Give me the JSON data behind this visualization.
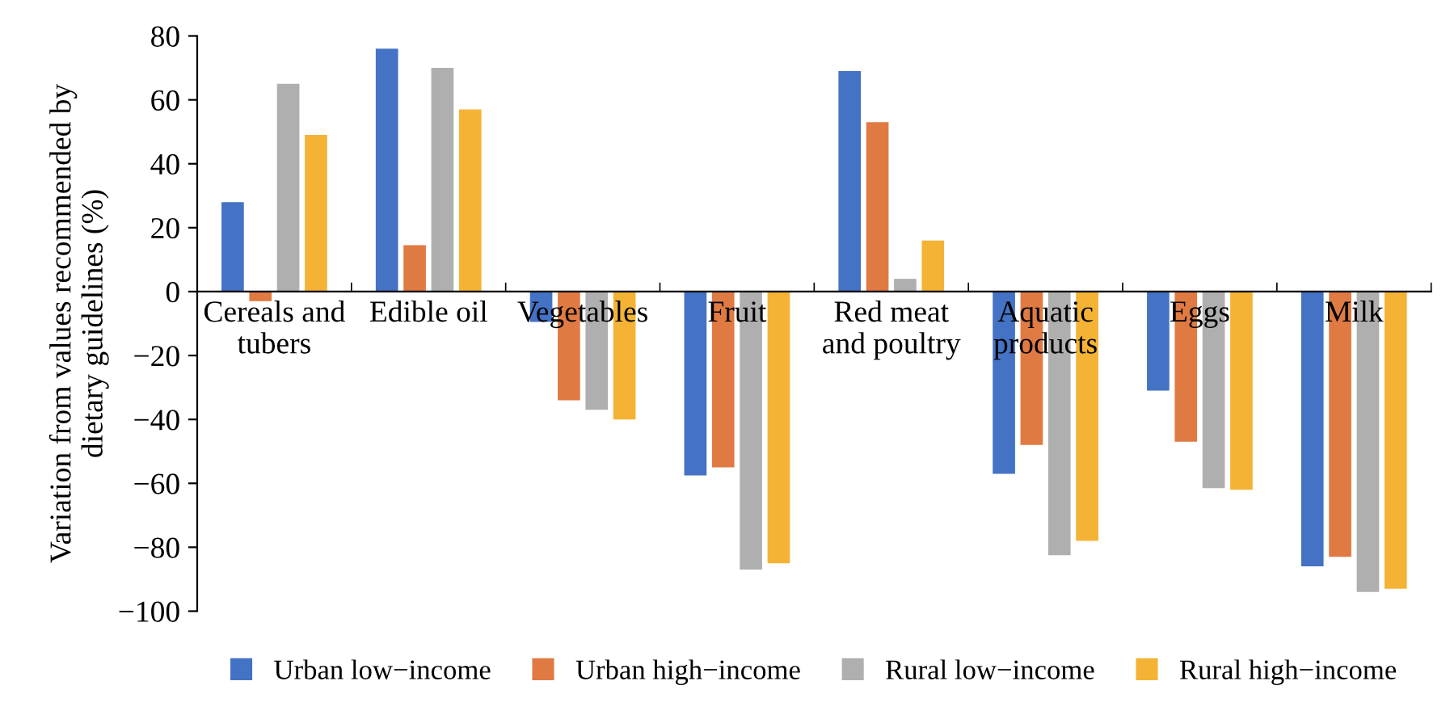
{
  "chart_data": {
    "type": "bar",
    "ylabel": "Variation from values recommended by\ndietary guidelines (%)",
    "categories": [
      "Cereals and\ntubers",
      "Edible oil",
      "Vegetables",
      "Fruit",
      "Red meat\nand poultry",
      "Aquatic\nproducts",
      "Eggs",
      "Milk"
    ],
    "series": [
      {
        "name": "Urban low−income",
        "color": "#4472c4",
        "values": [
          28,
          76,
          -9.5,
          -57.5,
          69,
          -57,
          -31,
          -86
        ]
      },
      {
        "name": "Urban high−income",
        "color": "#e07a43",
        "values": [
          -3,
          14.5,
          -34,
          -55,
          53,
          -48,
          -47,
          -83
        ]
      },
      {
        "name": "Rural low−income",
        "color": "#afafaf",
        "values": [
          65,
          70,
          -37,
          -87,
          4,
          -82.5,
          -61.5,
          -94
        ]
      },
      {
        "name": "Rural high−income",
        "color": "#f4b335",
        "values": [
          49,
          57,
          -40,
          -85,
          16,
          -78,
          -62,
          -93
        ]
      }
    ],
    "ylim": [
      -100,
      80
    ],
    "yticks": [
      {
        "value": -100,
        "label": "−100"
      },
      {
        "value": -80,
        "label": "−80"
      },
      {
        "value": -60,
        "label": "−60"
      },
      {
        "value": -40,
        "label": "−40"
      },
      {
        "value": -20,
        "label": "−20"
      },
      0,
      20,
      40,
      60,
      80
    ],
    "grid": false,
    "legend": "bottom"
  }
}
